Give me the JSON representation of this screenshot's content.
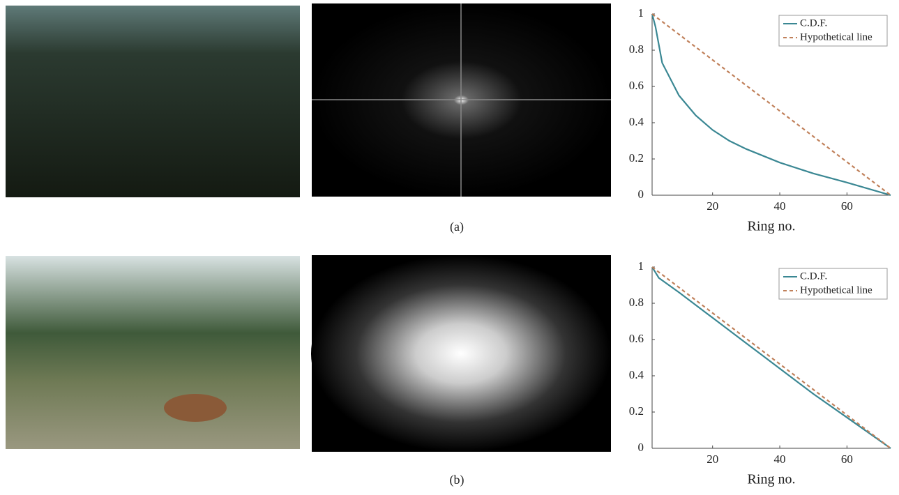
{
  "captions": [
    "(a)",
    "(b)"
  ],
  "chart_data": [
    {
      "type": "line",
      "x_label": "Ring no.",
      "xlim": [
        2,
        73
      ],
      "xticks": [
        20,
        40,
        60
      ],
      "ylim": [
        0,
        1
      ],
      "yticks": [
        0,
        0.2,
        0.4,
        0.6,
        0.8,
        1
      ],
      "legend": "upper right",
      "series": [
        {
          "name": "C.D.F.",
          "color": "#3a8793",
          "style": "solid",
          "x": [
            2,
            3,
            5,
            10,
            15,
            20,
            25,
            30,
            40,
            50,
            60,
            73
          ],
          "values": [
            1,
            0.93,
            0.73,
            0.55,
            0.44,
            0.36,
            0.3,
            0.255,
            0.18,
            0.12,
            0.07,
            0
          ]
        },
        {
          "name": "Hypothetical line",
          "color": "#c0805a",
          "style": "dashed",
          "x": [
            2,
            73
          ],
          "values": [
            1,
            0
          ]
        }
      ]
    },
    {
      "type": "line",
      "x_label": "Ring no.",
      "xlim": [
        2,
        73
      ],
      "xticks": [
        20,
        40,
        60
      ],
      "ylim": [
        0,
        1
      ],
      "yticks": [
        0,
        0.2,
        0.4,
        0.6,
        0.8,
        1
      ],
      "legend": "upper right",
      "series": [
        {
          "name": "C.D.F.",
          "color": "#3a8793",
          "style": "solid",
          "x": [
            2,
            3,
            4,
            10,
            20,
            30,
            40,
            50,
            60,
            73
          ],
          "values": [
            1,
            0.97,
            0.94,
            0.86,
            0.72,
            0.58,
            0.44,
            0.3,
            0.17,
            0
          ]
        },
        {
          "name": "Hypothetical line",
          "color": "#c0805a",
          "style": "dashed",
          "x": [
            2,
            73
          ],
          "values": [
            1,
            0
          ]
        }
      ]
    }
  ]
}
